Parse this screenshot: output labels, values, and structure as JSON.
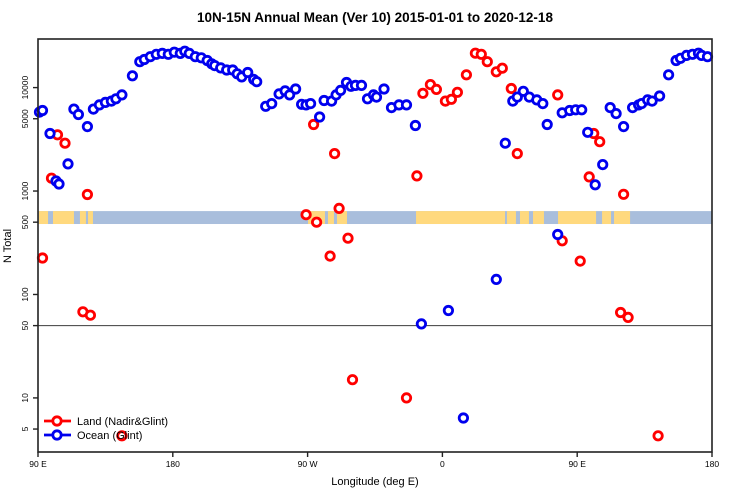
{
  "chart_data": {
    "type": "scatter",
    "title": "10N-15N Annual Mean (Ver 10)   2015-01-01 to 2020-12-18",
    "xlabel": "Longitude (deg E)",
    "ylabel": "N Total",
    "x_axis": {
      "min": 90,
      "max": 540,
      "ticks": [
        {
          "value": 90,
          "label": "90 E"
        },
        {
          "value": 180,
          "label": "180"
        },
        {
          "value": 270,
          "label": "90 W"
        },
        {
          "value": 360,
          "label": "0"
        },
        {
          "value": 450,
          "label": "90 E"
        },
        {
          "value": 540,
          "label": "180"
        }
      ]
    },
    "y_axis": {
      "scale": "log",
      "min": 3,
      "max": 29500,
      "ticks": [
        {
          "value": 10000,
          "label": "10000"
        },
        {
          "value": 5000,
          "label": "5000"
        },
        {
          "value": 1000,
          "label": "1000"
        },
        {
          "value": 500,
          "label": "500"
        },
        {
          "value": 100,
          "label": "100"
        },
        {
          "value": 50,
          "label": "50"
        },
        {
          "value": 10,
          "label": "10"
        },
        {
          "value": 5,
          "label": "5"
        }
      ]
    },
    "reference_line": {
      "y": 50,
      "color": "#3c3c3c"
    },
    "latitude_strip": {
      "name": "10N-15N land-ocean map band",
      "y_top_value": 640,
      "y_bottom_value": 480,
      "ocean_color": "#A9BEDC",
      "land_color": "#FFD97E",
      "land_segments_deg": [
        [
          90.6,
          96.7
        ],
        [
          100,
          114
        ],
        [
          118,
          122
        ],
        [
          123.4,
          126.7
        ],
        [
          270.3,
          281.6
        ],
        [
          283.6,
          287.6
        ],
        [
          289.6,
          296.3
        ],
        [
          342.4,
          401.8
        ],
        [
          403.1,
          409.1
        ],
        [
          411.8,
          417.8
        ],
        [
          420.5,
          427.8
        ],
        [
          437.2,
          462.6
        ],
        [
          466.6,
          472.6
        ],
        [
          474.6,
          485.3
        ]
      ]
    },
    "legend": {
      "position": "bottom-left",
      "entries": [
        {
          "label": "Land (Nadir&Glint)",
          "color": "#FF0000"
        },
        {
          "label": "Ocean (Glint)",
          "color": "#0000EE"
        }
      ]
    },
    "series": [
      {
        "name": "Land (Nadir&Glint)",
        "color": "#FF0000",
        "points": [
          [
            93,
            225
          ],
          [
            99,
            1330
          ],
          [
            103,
            3500
          ],
          [
            108,
            2900
          ],
          [
            120,
            68
          ],
          [
            123,
            925
          ],
          [
            125,
            63
          ],
          [
            146,
            4.3
          ],
          [
            269,
            590
          ],
          [
            274,
            4400
          ],
          [
            276,
            500
          ],
          [
            285,
            235
          ],
          [
            288,
            2300
          ],
          [
            291,
            680
          ],
          [
            297,
            350
          ],
          [
            300,
            15
          ],
          [
            336,
            10
          ],
          [
            343,
            1400
          ],
          [
            347,
            8800
          ],
          [
            352,
            10700
          ],
          [
            356,
            9600
          ],
          [
            362,
            7400
          ],
          [
            366,
            7700
          ],
          [
            370,
            9000
          ],
          [
            376,
            13300
          ],
          [
            382,
            21500
          ],
          [
            386,
            21000
          ],
          [
            390,
            17800
          ],
          [
            396,
            14200
          ],
          [
            400,
            15400
          ],
          [
            406,
            9800
          ],
          [
            410,
            2300
          ],
          [
            437,
            8500
          ],
          [
            440,
            330
          ],
          [
            452,
            210
          ],
          [
            458,
            1370
          ],
          [
            461,
            3600
          ],
          [
            465,
            3000
          ],
          [
            479,
            67
          ],
          [
            481,
            930
          ],
          [
            484,
            60
          ],
          [
            504,
            4.3
          ]
        ]
      },
      {
        "name": "Ocean (Glint)",
        "color": "#0000EE",
        "points": [
          [
            91,
            5800
          ],
          [
            93,
            6000
          ],
          [
            98,
            3600
          ],
          [
            102,
            1250
          ],
          [
            104,
            1170
          ],
          [
            110,
            1830
          ],
          [
            114,
            6200
          ],
          [
            117,
            5500
          ],
          [
            123,
            4200
          ],
          [
            127,
            6200
          ],
          [
            131,
            6800
          ],
          [
            135,
            7200
          ],
          [
            139,
            7400
          ],
          [
            142,
            7800
          ],
          [
            146,
            8500
          ],
          [
            153,
            13000
          ],
          [
            158,
            17800
          ],
          [
            161,
            18700
          ],
          [
            165,
            19900
          ],
          [
            169,
            21000
          ],
          [
            173,
            21400
          ],
          [
            177,
            21000
          ],
          [
            181,
            22000
          ],
          [
            185,
            21400
          ],
          [
            188,
            22500
          ],
          [
            191,
            21400
          ],
          [
            195,
            19900
          ],
          [
            199,
            19400
          ],
          [
            203,
            18300
          ],
          [
            206,
            17000
          ],
          [
            208,
            16300
          ],
          [
            212,
            15500
          ],
          [
            216,
            14800
          ],
          [
            220,
            14800
          ],
          [
            223,
            13600
          ],
          [
            226,
            12700
          ],
          [
            230,
            14000
          ],
          [
            234,
            12000
          ],
          [
            236,
            11400
          ],
          [
            242,
            6600
          ],
          [
            246,
            7000
          ],
          [
            251,
            8700
          ],
          [
            255,
            9300
          ],
          [
            258,
            8500
          ],
          [
            262,
            9700
          ],
          [
            266,
            6900
          ],
          [
            269,
            6800
          ],
          [
            272,
            7000
          ],
          [
            278,
            5200
          ],
          [
            281,
            7500
          ],
          [
            286,
            7400
          ],
          [
            289,
            8500
          ],
          [
            292,
            9400
          ],
          [
            296,
            11200
          ],
          [
            299,
            10300
          ],
          [
            302,
            10500
          ],
          [
            306,
            10500
          ],
          [
            310,
            7800
          ],
          [
            314,
            8500
          ],
          [
            316,
            8100
          ],
          [
            321,
            9700
          ],
          [
            326,
            6400
          ],
          [
            331,
            6800
          ],
          [
            336,
            6800
          ],
          [
            342,
            4300
          ],
          [
            346,
            52
          ],
          [
            364,
            70
          ],
          [
            374,
            6.4
          ],
          [
            396,
            140
          ],
          [
            402,
            2900
          ],
          [
            407,
            7400
          ],
          [
            410,
            8100
          ],
          [
            414,
            9200
          ],
          [
            418,
            8100
          ],
          [
            423,
            7600
          ],
          [
            427,
            7000
          ],
          [
            430,
            4400
          ],
          [
            437,
            380
          ],
          [
            440,
            5700
          ],
          [
            445,
            6000
          ],
          [
            449,
            6100
          ],
          [
            453,
            6100
          ],
          [
            457,
            3700
          ],
          [
            462,
            1150
          ],
          [
            467,
            1800
          ],
          [
            472,
            6400
          ],
          [
            476,
            5600
          ],
          [
            481,
            4200
          ],
          [
            487,
            6400
          ],
          [
            491,
            6800
          ],
          [
            493,
            7000
          ],
          [
            497,
            7600
          ],
          [
            500,
            7400
          ],
          [
            505,
            8300
          ],
          [
            511,
            13300
          ],
          [
            516,
            18300
          ],
          [
            519,
            19200
          ],
          [
            523,
            20500
          ],
          [
            527,
            21000
          ],
          [
            531,
            21500
          ],
          [
            533,
            20500
          ],
          [
            537,
            19900
          ]
        ]
      }
    ],
    "marker": {
      "shape": "open-circle",
      "radius": 4.2,
      "stroke_width": 2.8
    }
  }
}
